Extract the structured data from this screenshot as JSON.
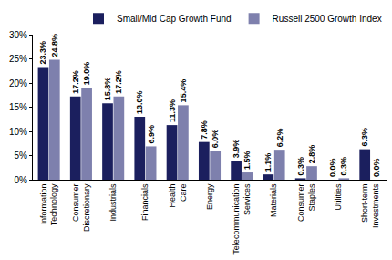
{
  "chart_data": {
    "type": "bar",
    "categories": [
      "Information Technology",
      "Consumer Discretionary",
      "Industrials",
      "Financials",
      "Health Care",
      "Energy",
      "Telecommunication Services",
      "Materials",
      "Consumer Staples",
      "Utilities",
      "Short-term Investments"
    ],
    "series": [
      {
        "name": "Small/Mid Cap Growth Fund",
        "color": "#1b1f5e",
        "values": [
          23.3,
          17.2,
          15.8,
          13.0,
          11.3,
          7.8,
          3.9,
          1.1,
          0.3,
          0.0,
          6.3
        ],
        "value_labels": [
          "23.3%",
          "17.2%",
          "15.8%",
          "13.0%",
          "11.3%",
          "7.8%",
          "3.9%",
          "1.1%",
          "0.3%",
          "0.0%",
          "6.3%"
        ]
      },
      {
        "name": "Russell 2500 Growth Index",
        "color": "#7e80ad",
        "values": [
          24.8,
          19.0,
          17.2,
          6.9,
          15.4,
          6.0,
          1.5,
          6.2,
          2.8,
          0.3,
          0.0
        ],
        "value_labels": [
          "24.8%",
          "19.0%",
          "17.2%",
          "6.9%",
          "15.4%",
          "6.0%",
          "1.5%",
          "6.2%",
          "2.8%",
          "0.3%",
          "0.0%"
        ]
      }
    ],
    "ylim": [
      0,
      30
    ],
    "yticks": [
      {
        "value": 0,
        "label": "0%"
      },
      {
        "value": 5,
        "label": "5%"
      },
      {
        "value": 10,
        "label": "10%"
      },
      {
        "value": 15,
        "label": "15%"
      },
      {
        "value": 20,
        "label": "20%"
      },
      {
        "value": 25,
        "label": "25%"
      },
      {
        "value": 30,
        "label": "30%"
      }
    ],
    "grid": false,
    "legend": "top right",
    "data_labels": true
  }
}
